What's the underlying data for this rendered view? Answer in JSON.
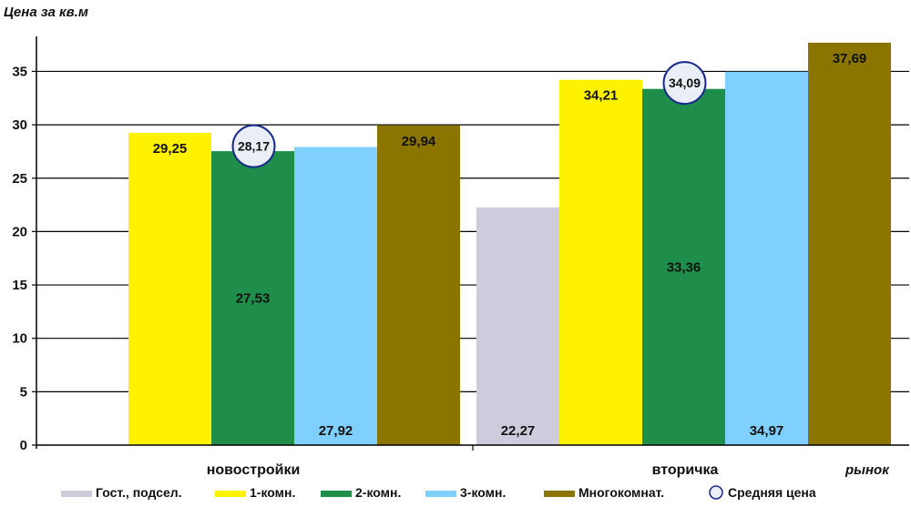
{
  "chart_data": {
    "type": "bar",
    "ylabel": "Цена за кв.м",
    "xlabel": "рынок",
    "ylim": [
      0,
      37.7
    ],
    "yticks": [
      0,
      5,
      10,
      15,
      20,
      25,
      30,
      35
    ],
    "grid": true,
    "legend_position": "bottom",
    "categories": [
      "новостройки",
      "вторичка"
    ],
    "series": [
      {
        "name": "Гост., подсел.",
        "color": "#d0cbdc",
        "values": [
          null,
          22.27
        ],
        "labels": [
          "",
          "22,27"
        ]
      },
      {
        "name": "1-комн.",
        "color": "#fff200",
        "values": [
          29.25,
          34.21
        ],
        "labels": [
          "29,25",
          "34,21"
        ]
      },
      {
        "name": "2-комн.",
        "color": "#1e8e4a",
        "values": [
          27.53,
          33.36
        ],
        "labels": [
          "27,53",
          "33,36"
        ]
      },
      {
        "name": "3-комн.",
        "color": "#7fd0ff",
        "values": [
          27.92,
          34.97
        ],
        "labels": [
          "27,92",
          "34,97"
        ]
      },
      {
        "name": "Многокомнат.",
        "color": "#8b7500",
        "values": [
          29.94,
          37.69
        ],
        "labels": [
          "29,94",
          "37,69"
        ]
      }
    ],
    "average": {
      "name": "Средняя цена",
      "values": [
        28.17,
        34.09
      ],
      "labels": [
        "28,17",
        "34,09"
      ]
    }
  }
}
